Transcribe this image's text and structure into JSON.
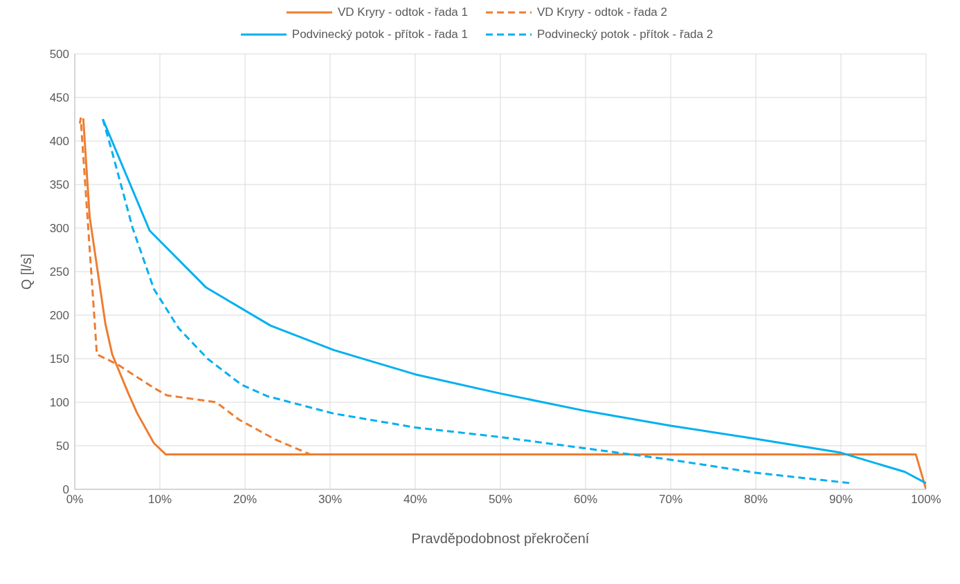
{
  "chart_data": {
    "type": "line",
    "xlabel": "Pravděpodobnost překročení",
    "ylabel": "Q [l/s]",
    "xlim": [
      0,
      100
    ],
    "xticks": [
      {
        "value": 0,
        "label": "0%"
      },
      {
        "value": 10,
        "label": "10%"
      },
      {
        "value": 20,
        "label": "20%"
      },
      {
        "value": 30,
        "label": "30%"
      },
      {
        "value": 40,
        "label": "40%"
      },
      {
        "value": 50,
        "label": "50%"
      },
      {
        "value": 60,
        "label": "60%"
      },
      {
        "value": 70,
        "label": "70%"
      },
      {
        "value": 80,
        "label": "80%"
      },
      {
        "value": 90,
        "label": "90%"
      },
      {
        "value": 100,
        "label": "100%"
      }
    ],
    "ylim": [
      0,
      500
    ],
    "yticks": [
      0,
      50,
      100,
      150,
      200,
      250,
      300,
      350,
      400,
      450,
      500
    ],
    "grid": true,
    "legend": "top",
    "marker": "none",
    "series": [
      {
        "name": "VD Kryry - odtok - řada 1",
        "color": "#ed7d31",
        "line_style": "solid",
        "x": [
          1.0,
          1.75,
          3.6,
          4.4,
          6.3,
          7.3,
          9.3,
          10.7,
          98.8,
          100
        ],
        "values": [
          426,
          313,
          190,
          155,
          110,
          88,
          53,
          40,
          40,
          0
        ]
      },
      {
        "name": "VD Kryry - odtok - řada 2",
        "color": "#ed7d31",
        "line_style": "dashed",
        "x": [
          0.6,
          0.7,
          2.6,
          5.1,
          9.2,
          10.8,
          16.6,
          19.3,
          23.6,
          26,
          27.7,
          98.5
        ],
        "values": [
          420,
          426,
          155,
          143,
          117,
          108,
          100,
          80,
          57,
          47,
          40,
          40
        ]
      },
      {
        "name": "Podvinecký potok - přítok - řada 1",
        "color": "#00b0f0",
        "line_style": "solid",
        "x": [
          3.3,
          8.8,
          15.4,
          23,
          30.4,
          40,
          50,
          60,
          70,
          80,
          90,
          97.5,
          100
        ],
        "values": [
          425,
          297,
          232,
          188,
          160,
          132,
          110,
          90,
          73,
          58,
          42,
          20,
          7
        ]
      },
      {
        "name": "Podvinecký potok - přítok - řada 2",
        "color": "#00b0f0",
        "line_style": "dashed",
        "x": [
          3.3,
          4.4,
          6.8,
          9.3,
          12.2,
          15.6,
          19.6,
          22.6,
          30.4,
          40,
          50,
          60,
          70,
          80,
          91.2
        ],
        "values": [
          425,
          387,
          300,
          230,
          185,
          150,
          120,
          107,
          87,
          71,
          60,
          47,
          34,
          19,
          7
        ]
      }
    ]
  }
}
